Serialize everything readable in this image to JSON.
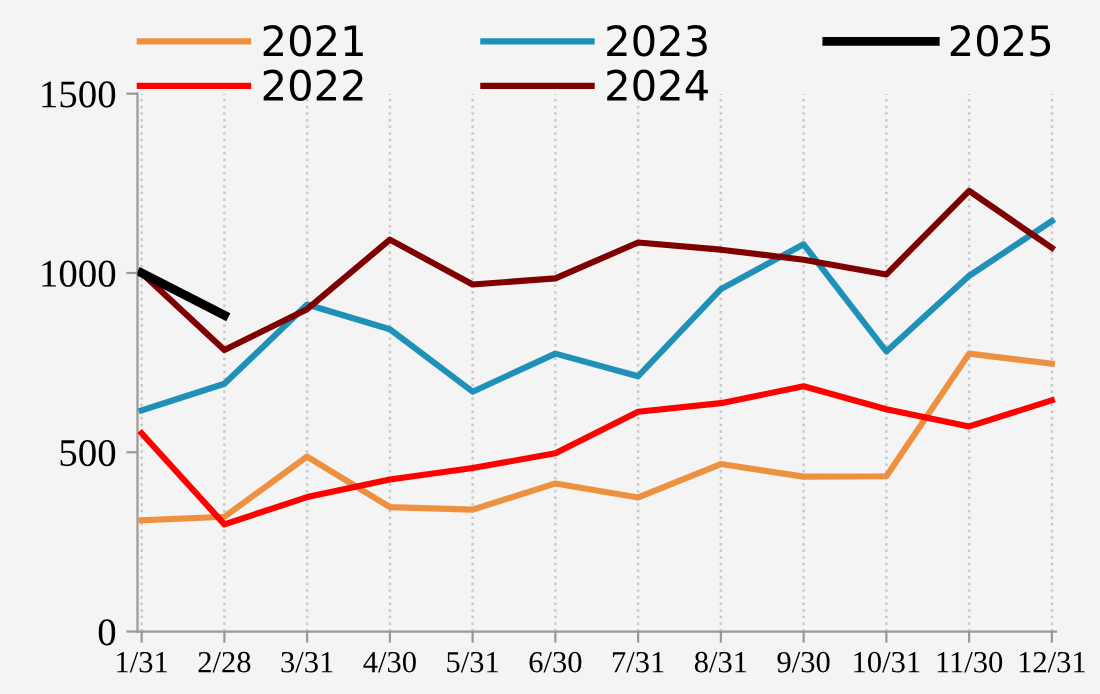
{
  "chart_data": {
    "type": "line",
    "categories": [
      "1/31",
      "2/28",
      "3/31",
      "4/30",
      "5/31",
      "6/30",
      "7/31",
      "8/31",
      "9/30",
      "10/31",
      "11/30",
      "12/31"
    ],
    "series": [
      {
        "name": "2021",
        "color": "#ed9140",
        "values": [
          310,
          320,
          488,
          347,
          340,
          413,
          374,
          467,
          432,
          433,
          775,
          747
        ]
      },
      {
        "name": "2022",
        "color": "#ff0000",
        "values": [
          553,
          299,
          375,
          424,
          456,
          497,
          613,
          637,
          684,
          620,
          572,
          645
        ]
      },
      {
        "name": "2023",
        "color": "#1f91b8",
        "values": [
          617,
          691,
          912,
          843,
          669,
          775,
          712,
          955,
          1080,
          781,
          992,
          1145
        ]
      },
      {
        "name": "2024",
        "color": "#7f0000",
        "values": [
          1000,
          785,
          899,
          1093,
          968,
          985,
          1085,
          1065,
          1037,
          996,
          1229,
          1070
        ]
      },
      {
        "name": "2025",
        "color": "#000000",
        "values": [
          1000,
          882,
          null,
          null,
          null,
          null,
          null,
          null,
          null,
          null,
          null,
          null
        ]
      }
    ],
    "ylim": [
      0,
      1500
    ],
    "yticks": [
      0,
      500,
      1000,
      1500
    ],
    "grid": "x",
    "legend": "top",
    "marker": "none",
    "line_style": "solid"
  }
}
